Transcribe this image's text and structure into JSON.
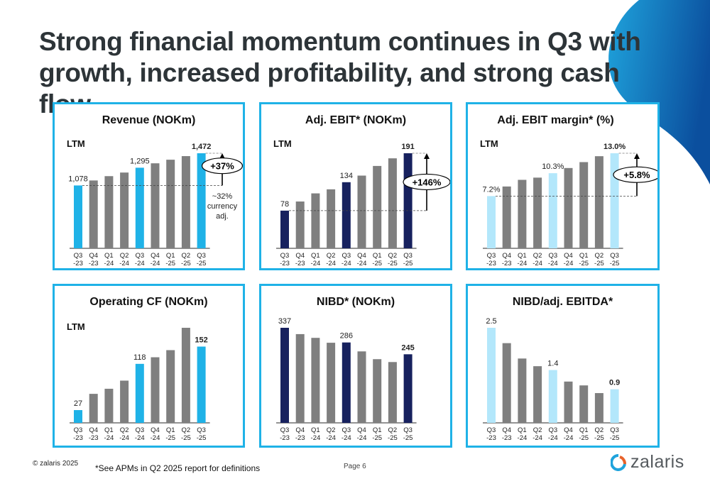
{
  "page": {
    "title": "Strong financial momentum continues in Q3 with growth, increased profitability, and strong cash flow",
    "footer_copyright": "© zalaris 2025",
    "footnote": "*See APMs in Q2 2025 report for definitions",
    "page_number": "Page 6",
    "logo_text": "zalaris"
  },
  "colors": {
    "panel_border": "#1fb2e7",
    "bright_blue": "#1fb2e7",
    "navy": "#17215e",
    "light_blue": "#b3e7fb",
    "grey": "#7f7f7f",
    "title_text": "#2d3438"
  },
  "chart_data": [
    {
      "id": "revenue",
      "type": "bar",
      "title": "Revenue (NOKm)",
      "subtitle": "LTM",
      "categories": [
        "Q3\n-23",
        "Q4\n-23",
        "Q1\n-24",
        "Q2\n-24",
        "Q3\n-24",
        "Q4\n-24",
        "Q1\n-25",
        "Q2\n-25",
        "Q3\n-25"
      ],
      "values": [
        1078,
        1139,
        1192,
        1236,
        1295,
        1349,
        1393,
        1437,
        1472
      ],
      "highlight_color": "#1fb2e7",
      "highlight_indices": [
        0,
        4,
        8
      ],
      "data_labels": [
        {
          "index": 0,
          "text": "1,078",
          "bold": false
        },
        {
          "index": 4,
          "text": "1,295",
          "bold": false
        },
        {
          "index": 8,
          "text": "1,472",
          "bold": true
        }
      ],
      "growth_badge": "+37%",
      "annotation": [
        "~32%",
        "currency",
        "adj."
      ],
      "ylim": [
        0,
        1472
      ]
    },
    {
      "id": "adj-ebit",
      "type": "bar",
      "title": "Adj. EBIT* (NOKm)",
      "subtitle": "LTM",
      "categories": [
        "Q3\n-23",
        "Q4\n-23",
        "Q1\n-24",
        "Q2\n-24",
        "Q3\n-24",
        "Q4\n-24",
        "Q1\n-25",
        "Q2\n-25",
        "Q3\n-25"
      ],
      "values": [
        78,
        96,
        112,
        120,
        134,
        147,
        166,
        181,
        191
      ],
      "highlight_color": "#17215e",
      "highlight_indices": [
        0,
        4,
        8
      ],
      "data_labels": [
        {
          "index": 0,
          "text": "78",
          "bold": false
        },
        {
          "index": 4,
          "text": "134",
          "bold": false
        },
        {
          "index": 8,
          "text": "191",
          "bold": true
        }
      ],
      "growth_badge": "+146%",
      "annotation": [],
      "ylim": [
        0,
        191
      ]
    },
    {
      "id": "adj-ebit-margin",
      "type": "bar",
      "title": "Adj. EBIT margin* (%)",
      "subtitle": "LTM",
      "categories": [
        "Q3\n-23",
        "Q4\n-23",
        "Q1\n-24",
        "Q2\n-24",
        "Q3\n-24",
        "Q4\n-24",
        "Q1\n-25",
        "Q2\n-25",
        "Q3\n-25"
      ],
      "values": [
        7.2,
        8.5,
        9.4,
        9.7,
        10.3,
        11.0,
        11.8,
        12.6,
        13.0
      ],
      "highlight_color": "#b3e7fb",
      "highlight_indices": [
        0,
        4,
        8
      ],
      "data_labels": [
        {
          "index": 0,
          "text": "7.2%",
          "bold": false
        },
        {
          "index": 4,
          "text": "10.3%",
          "bold": false
        },
        {
          "index": 8,
          "text": "13.0%",
          "bold": true
        }
      ],
      "growth_badge": "+5.8%",
      "annotation": [],
      "ylim": [
        0,
        13.0
      ]
    },
    {
      "id": "operating-cf",
      "type": "bar",
      "title": "Operating CF (NOKm)",
      "subtitle": "LTM",
      "categories": [
        "Q3\n-23",
        "Q4\n-23",
        "Q1\n-24",
        "Q2\n-24",
        "Q3\n-24",
        "Q4\n-24",
        "Q1\n-25",
        "Q2\n-25",
        "Q3\n-25"
      ],
      "values": [
        27,
        59,
        69,
        85,
        118,
        131,
        145,
        189,
        152
      ],
      "highlight_color": "#1fb2e7",
      "highlight_indices": [
        0,
        4,
        8
      ],
      "data_labels": [
        {
          "index": 0,
          "text": "27",
          "bold": false
        },
        {
          "index": 4,
          "text": "118",
          "bold": false
        },
        {
          "index": 8,
          "text": "152",
          "bold": true
        }
      ],
      "growth_badge": "",
      "annotation": [],
      "ylim": [
        0,
        189
      ]
    },
    {
      "id": "nibd",
      "type": "bar",
      "title": "NIBD* (NOKm)",
      "subtitle": "",
      "categories": [
        "Q3\n-23",
        "Q4\n-23",
        "Q1\n-24",
        "Q2\n-24",
        "Q3\n-24",
        "Q4\n-24",
        "Q1\n-25",
        "Q2\n-25",
        "Q3\n-25"
      ],
      "values": [
        337,
        315,
        302,
        285,
        286,
        255,
        228,
        218,
        245
      ],
      "highlight_color": "#17215e",
      "highlight_indices": [
        0,
        4,
        8
      ],
      "data_labels": [
        {
          "index": 0,
          "text": "337",
          "bold": false
        },
        {
          "index": 4,
          "text": "286",
          "bold": false
        },
        {
          "index": 8,
          "text": "245",
          "bold": true
        }
      ],
      "growth_badge": "",
      "annotation": [],
      "ylim": [
        0,
        337
      ]
    },
    {
      "id": "nibd-ebitda",
      "type": "bar",
      "title": "NIBD/adj. EBITDA*",
      "subtitle": "",
      "categories": [
        "Q3\n-23",
        "Q4\n-23",
        "Q1\n-24",
        "Q2\n-24",
        "Q3\n-24",
        "Q4\n-24",
        "Q1\n-25",
        "Q2\n-25",
        "Q3\n-25"
      ],
      "values": [
        2.5,
        2.1,
        1.7,
        1.5,
        1.4,
        1.1,
        1.0,
        0.8,
        0.9
      ],
      "highlight_color": "#b3e7fb",
      "highlight_indices": [
        0,
        4,
        8
      ],
      "data_labels": [
        {
          "index": 0,
          "text": "2.5",
          "bold": false
        },
        {
          "index": 4,
          "text": "1.4",
          "bold": false
        },
        {
          "index": 8,
          "text": "0.9",
          "bold": true
        }
      ],
      "growth_badge": "",
      "annotation": [],
      "ylim": [
        0,
        2.5
      ]
    }
  ]
}
